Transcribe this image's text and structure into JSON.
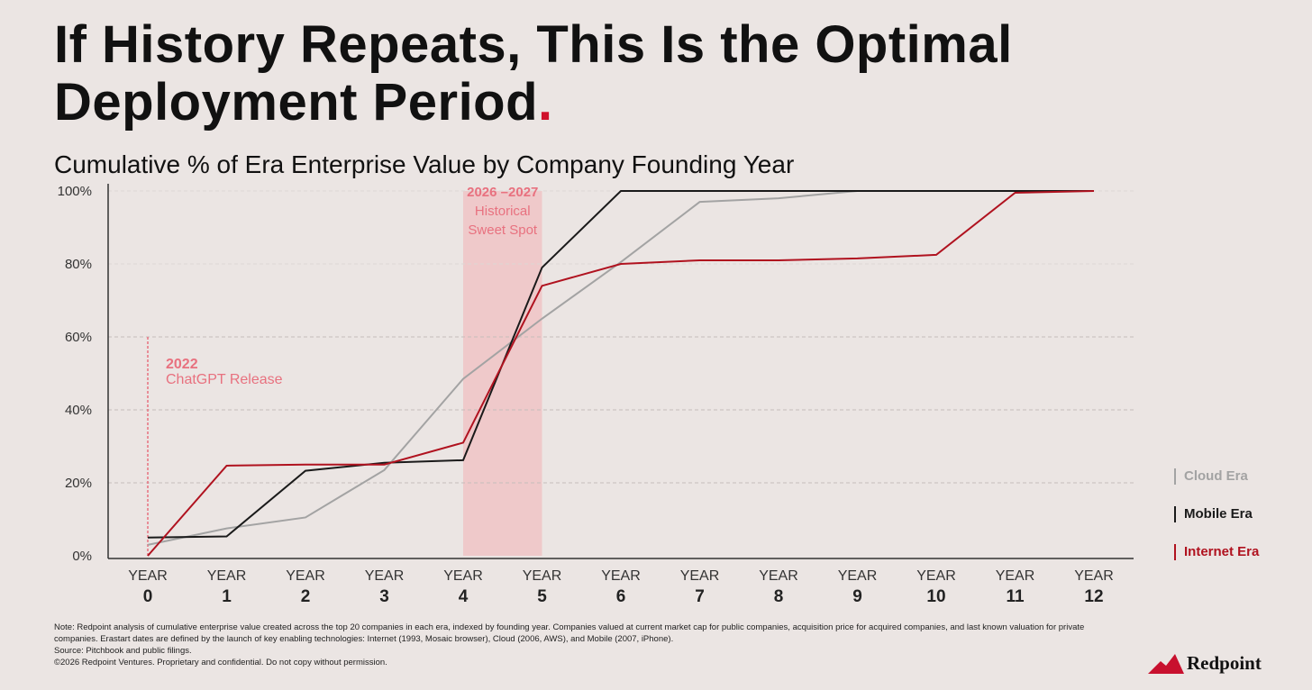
{
  "title": {
    "text": "If History Repeats, This Is the Optimal Deployment Period",
    "dot": "."
  },
  "subtitle": "Cumulative % of Era Enterprise Value by Company Founding Year",
  "chart_data": {
    "type": "line",
    "title": "Cumulative % of Era Enterprise Value by Company Founding Year",
    "xlabel": "",
    "ylabel": "",
    "x": [
      0,
      1,
      2,
      3,
      4,
      5,
      6,
      7,
      8,
      9,
      10,
      11,
      12
    ],
    "x_tick_prefix": "YEAR",
    "x_tick_labels": [
      "0",
      "1",
      "2",
      "3",
      "4",
      "5",
      "6",
      "7",
      "8",
      "9",
      "10",
      "11",
      "12"
    ],
    "y_tick_labels": [
      "0%",
      "20%",
      "40%",
      "60%",
      "80%",
      "100%"
    ],
    "y_ticks": [
      0,
      20,
      40,
      60,
      80,
      100
    ],
    "ylim": [
      0,
      100
    ],
    "grid": "horizontal dashed",
    "legend": "right",
    "series": [
      {
        "name": "Cloud Era",
        "color": "#a3a3a3",
        "values": [
          3,
          7.5,
          10.5,
          23.5,
          48.5,
          65,
          80.5,
          97,
          98,
          100,
          100,
          100,
          100
        ]
      },
      {
        "name": "Mobile Era",
        "color": "#1a1a1a",
        "values": [
          5,
          5.3,
          23.3,
          25.5,
          26.2,
          79,
          100,
          100,
          100,
          100,
          100,
          100,
          100
        ]
      },
      {
        "name": "Internet Era",
        "color": "#b0121f",
        "values": [
          0,
          24.7,
          25,
          25,
          31,
          74,
          80,
          81,
          81,
          81.5,
          82.5,
          99.5,
          100
        ]
      }
    ],
    "annotations": [
      {
        "type": "vline",
        "x": 0,
        "y_top": 60,
        "year": "2022",
        "label": "ChatGPT Release",
        "color": "#e8717f"
      },
      {
        "type": "band",
        "x_from": 4,
        "x_to": 5,
        "year": "2026 –2027",
        "label_line1": "Historical",
        "label_line2": "Sweet Spot",
        "color": "#efc9ca"
      }
    ]
  },
  "note": {
    "line1": "Note: Redpoint analysis of cumulative enterprise value created across the top 20 companies in each era, indexed by founding year. Companies valued at current market cap for public companies, acquisition price for acquired companies, and last known valuation for private companies. Erastart dates are defined by the launch of key enabling technologies: Internet (1993, Mosaic browser), Cloud (2006, AWS), and Mobile (2007, iPhone).",
    "source": "Source: Pitchbook and public filings.",
    "copyright": "©2026 Redpoint Ventures. Proprietary and confidential. Do not copy without permission."
  },
  "logo": {
    "text": "Redpoint"
  }
}
